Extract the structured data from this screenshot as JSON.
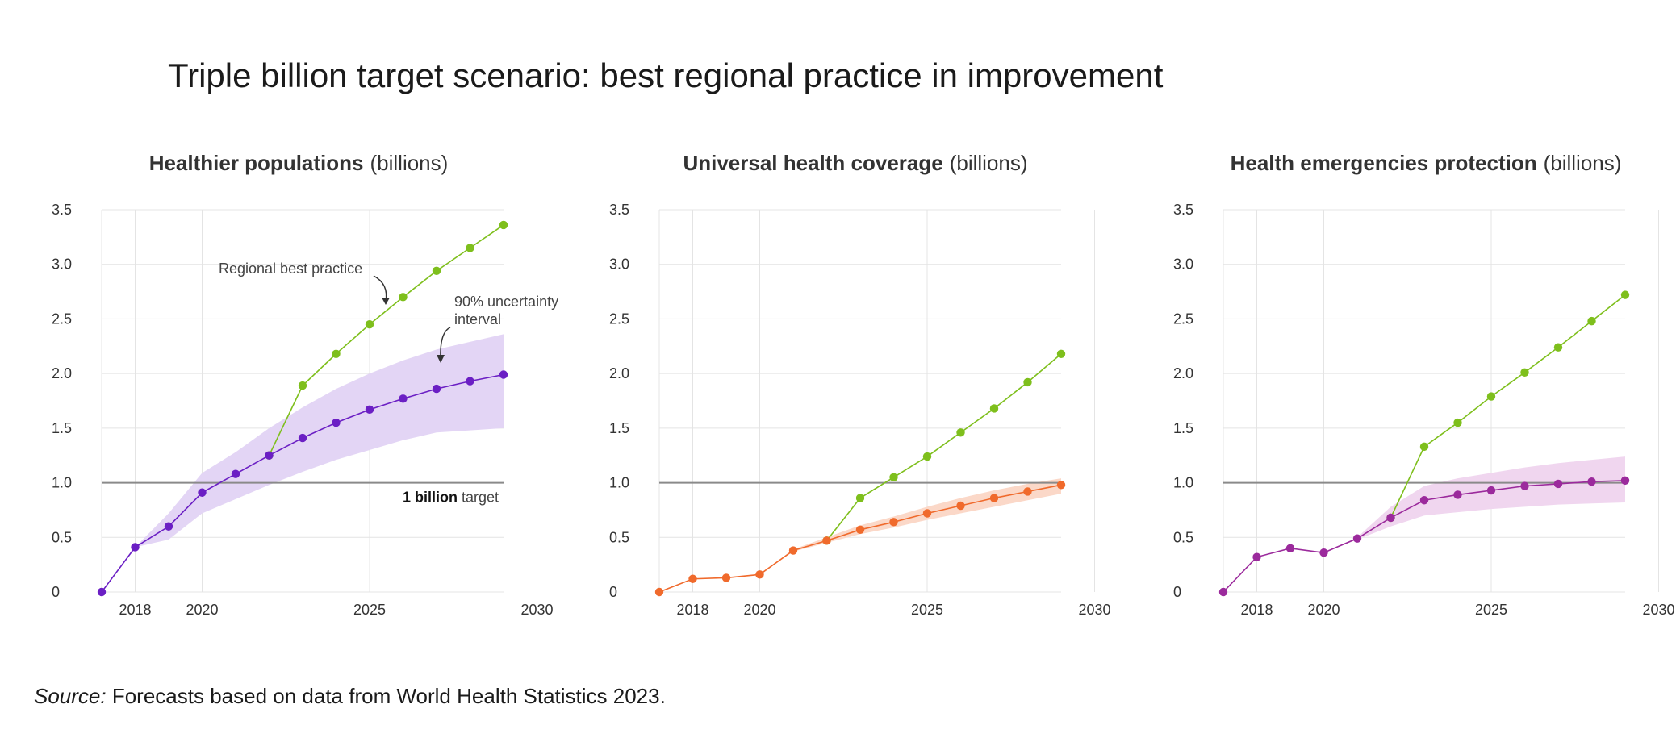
{
  "page": {
    "title": "Triple billion target scenario: best regional practice in improvement",
    "source_label": "Source:",
    "source_text": "Forecasts based on data from World Health Statistics 2023."
  },
  "chart_data": [
    {
      "type": "line",
      "title_bold": "Healthier populations",
      "title_unit": "(billions)",
      "x": [
        2017,
        2018,
        2019,
        2020,
        2021,
        2022,
        2023,
        2024,
        2025,
        2026,
        2027,
        2028,
        2029
      ],
      "xticks": [
        2018,
        2020,
        2025,
        2030
      ],
      "xtick_labels": [
        "2018",
        "2020",
        "2025",
        "2030"
      ],
      "yticks": [
        0,
        0.5,
        1.0,
        1.5,
        2.0,
        2.5,
        3.0,
        3.5
      ],
      "ytick_labels": [
        "0",
        "0.5",
        "1.0",
        "1.5",
        "2.0",
        "2.5",
        "3.0",
        "3.5"
      ],
      "xlim": [
        2016.7,
        2029
      ],
      "ylim": [
        0,
        3.5
      ],
      "target": 1.0,
      "target_label_bold": "1 billion",
      "target_label_rest": " target",
      "series": [
        {
          "x": [
            2016.7,
            2017.7,
            2018.7,
            2019.7,
            2020.7,
            2021.7,
            2022.7,
            2023.7,
            2024.7,
            2025.7,
            2026.7,
            2027.7,
            2028.7
          ],
          "values": [
            0,
            0.41,
            0.6,
            0.91,
            1.08,
            1.25,
            1.41,
            1.55,
            1.67,
            1.77,
            1.86,
            1.93,
            1.99
          ],
          "color": "#6b1fc4",
          "band_lower": [
            0,
            0.41,
            0.48,
            0.72,
            0.85,
            0.98,
            1.1,
            1.21,
            1.3,
            1.39,
            1.46,
            1.48,
            1.5
          ],
          "band_upper": [
            0,
            0.41,
            0.72,
            1.09,
            1.28,
            1.5,
            1.69,
            1.86,
            2.0,
            2.12,
            2.22,
            2.29,
            2.36
          ],
          "band_color": "#e3d5f5"
        },
        {
          "x": [
            2021.7,
            2022.7,
            2023.7,
            2024.7,
            2025.7,
            2026.7,
            2027.7,
            2028.7
          ],
          "values": [
            1.25,
            1.89,
            2.18,
            2.45,
            2.7,
            2.94,
            3.15,
            3.36
          ],
          "color": "#7ebf1c"
        }
      ],
      "annotations": [
        "Regional best practice",
        "90% uncertainty",
        "interval"
      ]
    },
    {
      "type": "line",
      "title_bold": "Universal health coverage",
      "title_unit": "(billions)",
      "xticks": [
        2018,
        2020,
        2025,
        2030
      ],
      "xtick_labels": [
        "2018",
        "2020",
        "2025",
        "2030"
      ],
      "yticks": [
        0,
        0.5,
        1.0,
        1.5,
        2.0,
        2.5,
        3.0,
        3.5
      ],
      "ytick_labels": [
        "0",
        "0.5",
        "1.0",
        "1.5",
        "2.0",
        "2.5",
        "3.0",
        "3.5"
      ],
      "xlim": [
        2016.7,
        2028.7
      ],
      "ylim": [
        0,
        3.5
      ],
      "target": 1.0,
      "series": [
        {
          "x": [
            2016.7,
            2017.7,
            2018.7,
            2019.7,
            2020.7,
            2021.7,
            2022.7,
            2023.7,
            2024.7,
            2025.7,
            2026.7,
            2027.7,
            2028.7
          ],
          "values": [
            0,
            0.12,
            0.13,
            0.16,
            0.38,
            0.47,
            0.57,
            0.64,
            0.72,
            0.79,
            0.86,
            0.92,
            0.98
          ],
          "color": "#f06a2c",
          "band_lower": [
            0,
            0.12,
            0.13,
            0.16,
            0.37,
            0.45,
            0.53,
            0.59,
            0.66,
            0.72,
            0.78,
            0.84,
            0.9
          ],
          "band_upper": [
            0,
            0.12,
            0.13,
            0.16,
            0.39,
            0.5,
            0.61,
            0.69,
            0.78,
            0.86,
            0.93,
            0.99,
            1.04
          ],
          "band_color": "#fbd8c8"
        },
        {
          "x": [
            2021.7,
            2022.7,
            2023.7,
            2024.7,
            2025.7,
            2026.7,
            2027.7,
            2028.7
          ],
          "values": [
            0.47,
            0.86,
            1.05,
            1.24,
            1.46,
            1.68,
            1.92,
            2.18
          ],
          "color": "#7ebf1c"
        }
      ]
    },
    {
      "type": "line",
      "title_bold": "Health emergencies protection",
      "title_unit": "(billions)",
      "xticks": [
        2018,
        2020,
        2025,
        2030
      ],
      "xtick_labels": [
        "2018",
        "2020",
        "2025",
        "2030"
      ],
      "yticks": [
        0,
        0.5,
        1.0,
        1.5,
        2.0,
        2.5,
        3.0,
        3.5
      ],
      "ytick_labels": [
        "0",
        "0.5",
        "1.0",
        "1.5",
        "2.0",
        "2.5",
        "3.0",
        "3.5"
      ],
      "xlim": [
        2016.7,
        2028.7
      ],
      "ylim": [
        0,
        3.5
      ],
      "target": 1.0,
      "series": [
        {
          "x": [
            2016.7,
            2017.7,
            2018.7,
            2019.7,
            2020.7,
            2021.7,
            2022.7,
            2023.7,
            2024.7,
            2025.7,
            2026.7,
            2027.7,
            2028.7
          ],
          "values": [
            0,
            0.32,
            0.4,
            0.36,
            0.49,
            0.68,
            0.84,
            0.89,
            0.93,
            0.97,
            0.99,
            1.01,
            1.02
          ],
          "color": "#9b2a9c",
          "band_lower": [
            0,
            0.32,
            0.4,
            0.36,
            0.48,
            0.6,
            0.7,
            0.73,
            0.76,
            0.78,
            0.8,
            0.81,
            0.82
          ],
          "band_upper": [
            0,
            0.32,
            0.4,
            0.36,
            0.5,
            0.78,
            0.97,
            1.04,
            1.09,
            1.14,
            1.18,
            1.21,
            1.24
          ],
          "band_color": "#f0d6ef"
        },
        {
          "x": [
            2021.7,
            2022.7,
            2023.7,
            2024.7,
            2025.7,
            2026.7,
            2027.7,
            2028.7
          ],
          "values": [
            0.68,
            1.33,
            1.55,
            1.79,
            2.01,
            2.24,
            2.48,
            2.72
          ],
          "color": "#7ebf1c"
        }
      ]
    }
  ]
}
